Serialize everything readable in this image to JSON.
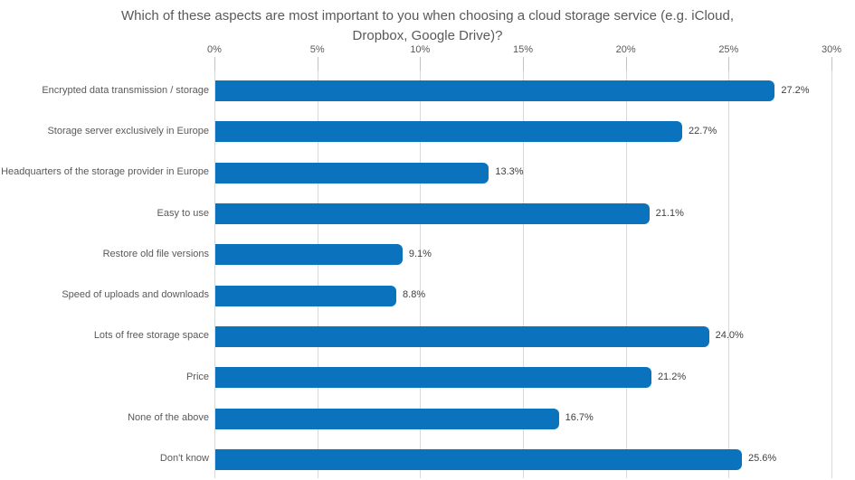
{
  "chart_data": {
    "type": "bar",
    "orientation": "horizontal",
    "title": "Which of these aspects are most important to you when choosing a cloud storage service (e.g. iCloud, Dropbox, Google Drive)?",
    "categories": [
      "Encrypted data transmission / storage",
      "Storage server exclusively in Europe",
      "Headquarters of the storage provider in Europe",
      "Easy to use",
      "Restore old file versions",
      "Speed of uploads and downloads",
      "Lots of free storage space",
      "Price",
      "None of the above",
      "Don't know"
    ],
    "values": [
      27.2,
      22.7,
      13.3,
      21.1,
      9.1,
      8.8,
      24.0,
      21.2,
      16.7,
      25.6
    ],
    "value_labels": [
      "27.2%",
      "22.7%",
      "13.3%",
      "21.1%",
      "9.1%",
      "8.8%",
      "24.0%",
      "21.2%",
      "16.7%",
      "25.6%"
    ],
    "xlim": [
      0,
      30
    ],
    "x_ticks": [
      0,
      5,
      10,
      15,
      20,
      25,
      30
    ],
    "x_tick_labels": [
      "0%",
      "5%",
      "10%",
      "15%",
      "20%",
      "25%",
      "30%"
    ],
    "xlabel": "",
    "ylabel": "",
    "grid": "vertical-gridlines-on",
    "legend": "none",
    "axis_position": "top",
    "colors": {
      "bar": "#0b73bd",
      "gridline": "#d9d9d9",
      "tick": "#c3c3c3",
      "title_text": "#595959",
      "category_text": "#595959",
      "axis_text": "#595959",
      "value_text": "#404040",
      "background": "#ffffff"
    }
  }
}
